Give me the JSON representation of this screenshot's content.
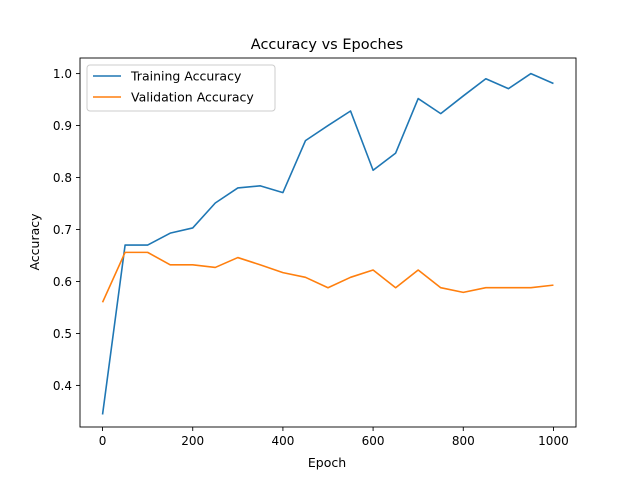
{
  "chart_data": {
    "type": "line",
    "title": "Accuracy vs Epoches",
    "xlabel": "Epoch",
    "ylabel": "Accuracy",
    "xlim": [
      -50,
      1050
    ],
    "ylim": [
      0.32,
      1.03
    ],
    "xticks": [
      0,
      200,
      400,
      600,
      800,
      1000
    ],
    "yticks": [
      0.4,
      0.5,
      0.6,
      0.7,
      0.8,
      0.9,
      1.0
    ],
    "xtick_labels": [
      "0",
      "200",
      "400",
      "600",
      "800",
      "1000"
    ],
    "ytick_labels": [
      "0.4",
      "0.5",
      "0.6",
      "0.7",
      "0.8",
      "0.9",
      "1.0"
    ],
    "legend_position": "top-left",
    "grid": false,
    "x": [
      0,
      50,
      100,
      150,
      200,
      250,
      300,
      350,
      400,
      450,
      500,
      550,
      600,
      650,
      700,
      750,
      800,
      850,
      900,
      950,
      1000
    ],
    "series": [
      {
        "name": "Training Accuracy",
        "color": "#1f77b4",
        "values": [
          0.344,
          0.67,
          0.67,
          0.693,
          0.703,
          0.751,
          0.78,
          0.784,
          0.771,
          0.871,
          0.9,
          0.928,
          0.814,
          0.847,
          0.952,
          0.923,
          0.957,
          0.99,
          0.971,
          1.0,
          0.981
        ]
      },
      {
        "name": "Validation Accuracy",
        "color": "#ff7f0e",
        "values": [
          0.56,
          0.656,
          0.656,
          0.632,
          0.632,
          0.627,
          0.646,
          0.632,
          0.617,
          0.608,
          0.588,
          0.608,
          0.622,
          0.588,
          0.622,
          0.588,
          0.579,
          0.588,
          0.588,
          0.588,
          0.593
        ]
      }
    ]
  }
}
